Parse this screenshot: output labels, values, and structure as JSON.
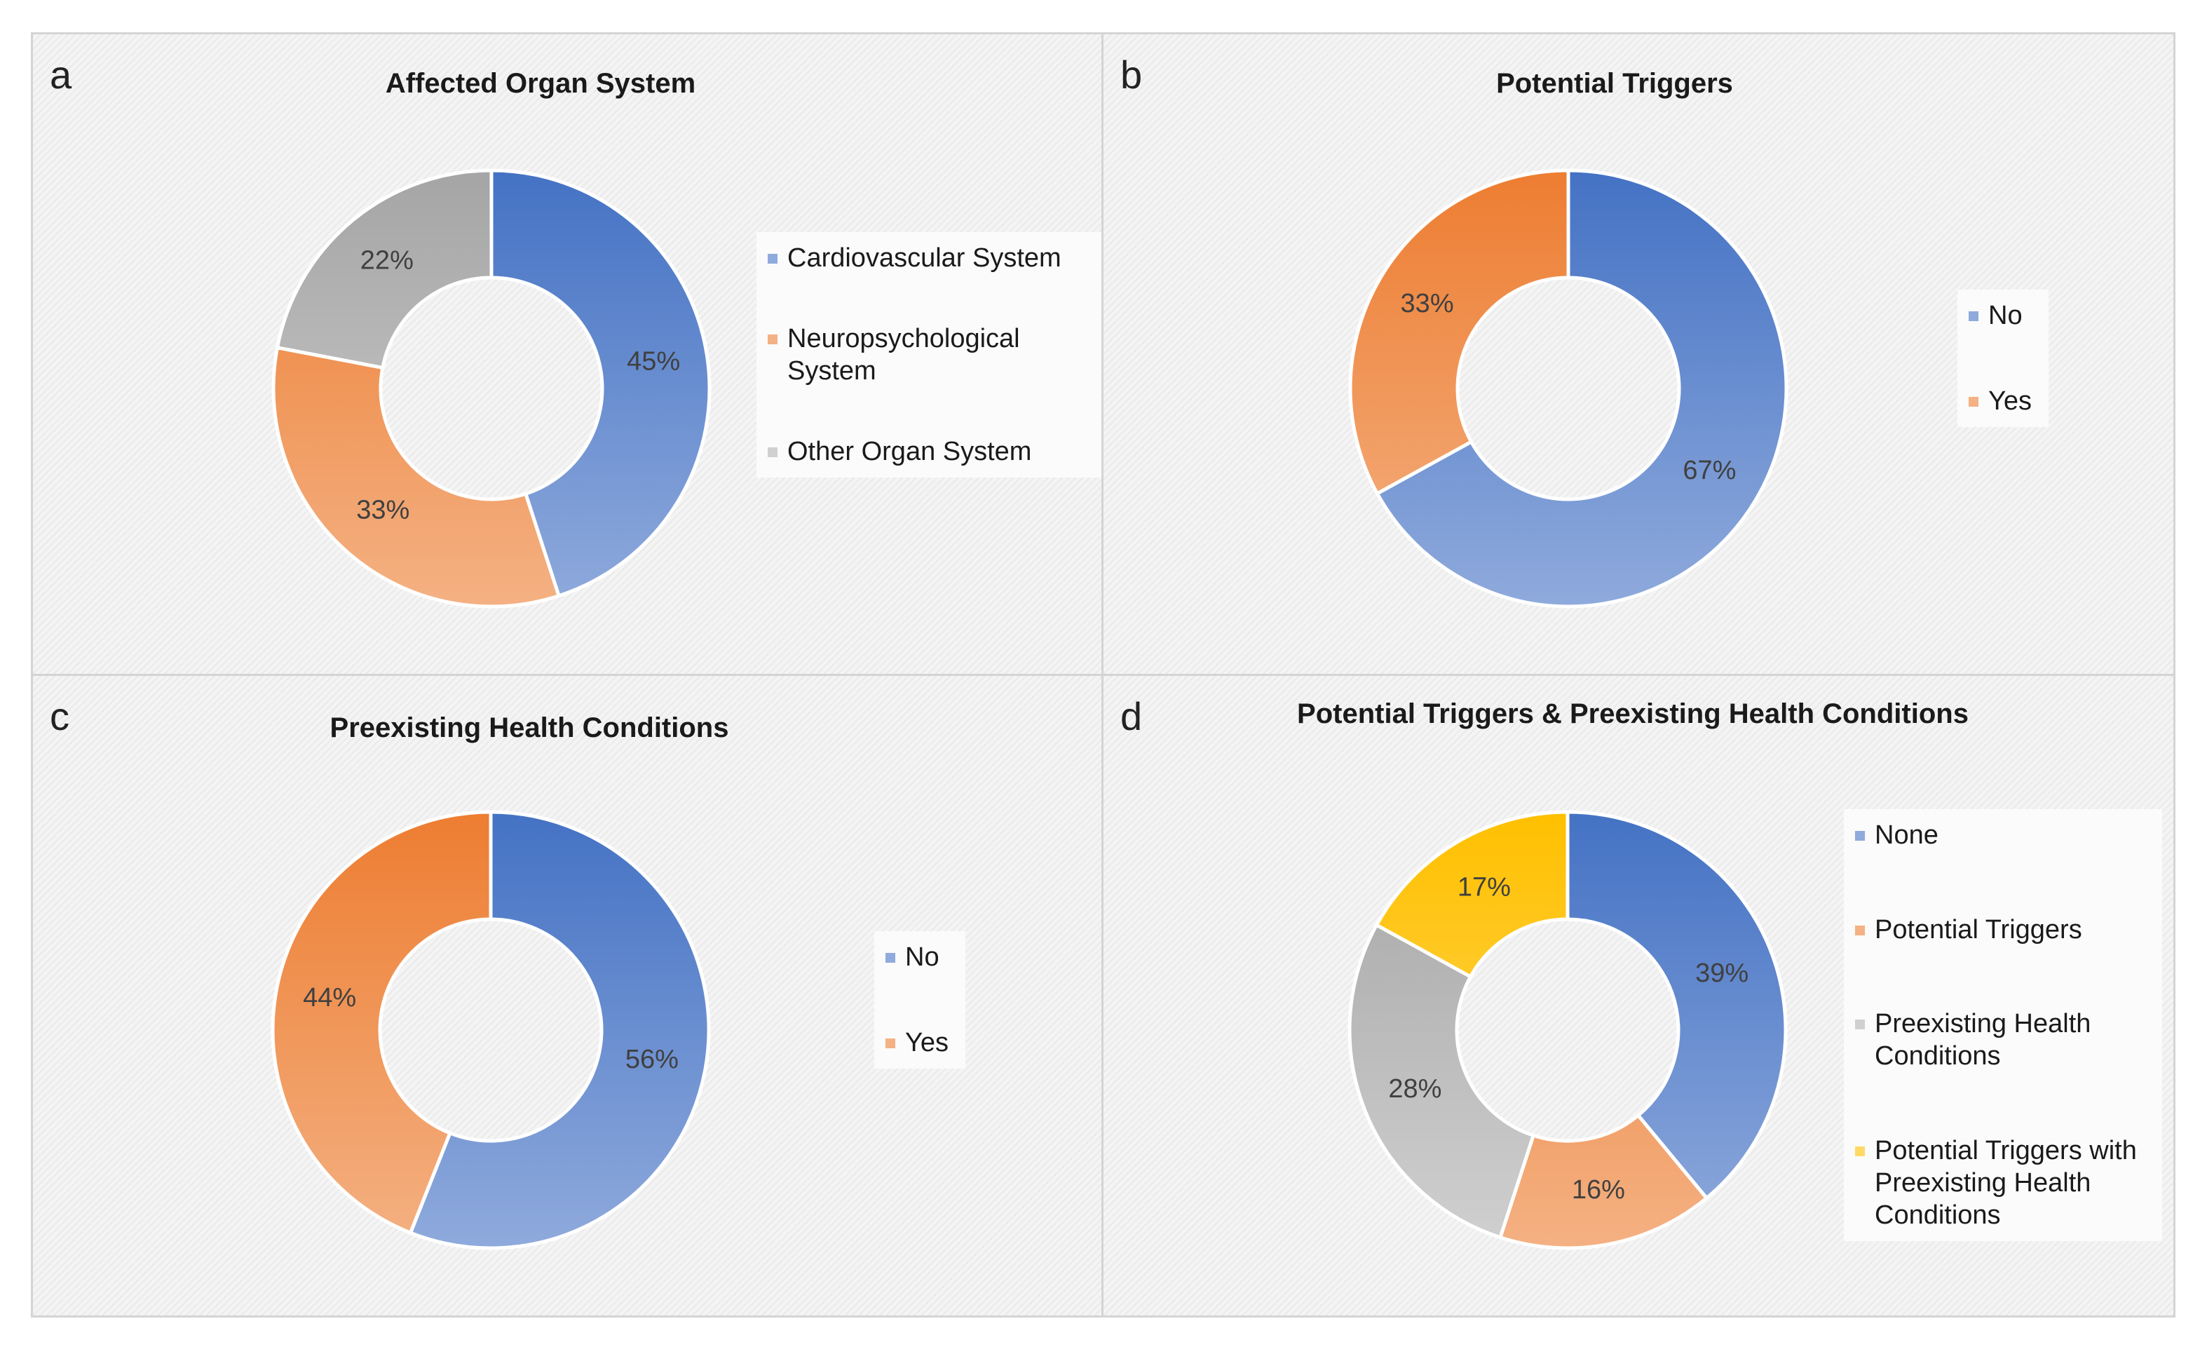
{
  "chart_data": [
    {
      "panel": "a",
      "type": "pie",
      "title": "Affected Organ System",
      "legend_position": "right",
      "series": [
        {
          "name": "Cardiovascular System",
          "value": 45,
          "label": "45%",
          "color": "#4472c4",
          "color_light": "#8faadc"
        },
        {
          "name": "Neuropsychological\nSystem",
          "value": 33,
          "label": "33%",
          "color": "#ed7d31",
          "color_light": "#f4b183"
        },
        {
          "name": "Other Organ System",
          "value": 22,
          "label": "22%",
          "color": "#a5a5a5",
          "color_light": "#d0d0d0"
        }
      ]
    },
    {
      "panel": "b",
      "type": "pie",
      "title": "Potential Triggers",
      "legend_position": "right",
      "series": [
        {
          "name": "No",
          "value": 67,
          "label": "67%",
          "color": "#4472c4",
          "color_light": "#8faadc"
        },
        {
          "name": "Yes",
          "value": 33,
          "label": "33%",
          "color": "#ed7d31",
          "color_light": "#f4b183"
        }
      ]
    },
    {
      "panel": "c",
      "type": "pie",
      "title": "Preexisting Health Conditions",
      "legend_position": "right",
      "series": [
        {
          "name": "No",
          "value": 56,
          "label": "56%",
          "color": "#4472c4",
          "color_light": "#8faadc"
        },
        {
          "name": "Yes",
          "value": 44,
          "label": "44%",
          "color": "#ed7d31",
          "color_light": "#f4b183"
        }
      ]
    },
    {
      "panel": "d",
      "type": "pie",
      "title": "Potential Triggers & Preexisting Health Conditions",
      "legend_position": "right",
      "series": [
        {
          "name": "None",
          "value": 39,
          "label": "39%",
          "color": "#4472c4",
          "color_light": "#8faadc"
        },
        {
          "name": "Potential Triggers",
          "value": 16,
          "label": "16%",
          "color": "#ed7d31",
          "color_light": "#f4b183"
        },
        {
          "name": "Preexisting Health\nConditions",
          "value": 28,
          "label": "28%",
          "color": "#a5a5a5",
          "color_light": "#d0d0d0"
        },
        {
          "name": "Potential Triggers with\nPreexisting Health\nConditions",
          "value": 17,
          "label": "17%",
          "color": "#ffc000",
          "color_light": "#ffd966"
        }
      ]
    }
  ]
}
